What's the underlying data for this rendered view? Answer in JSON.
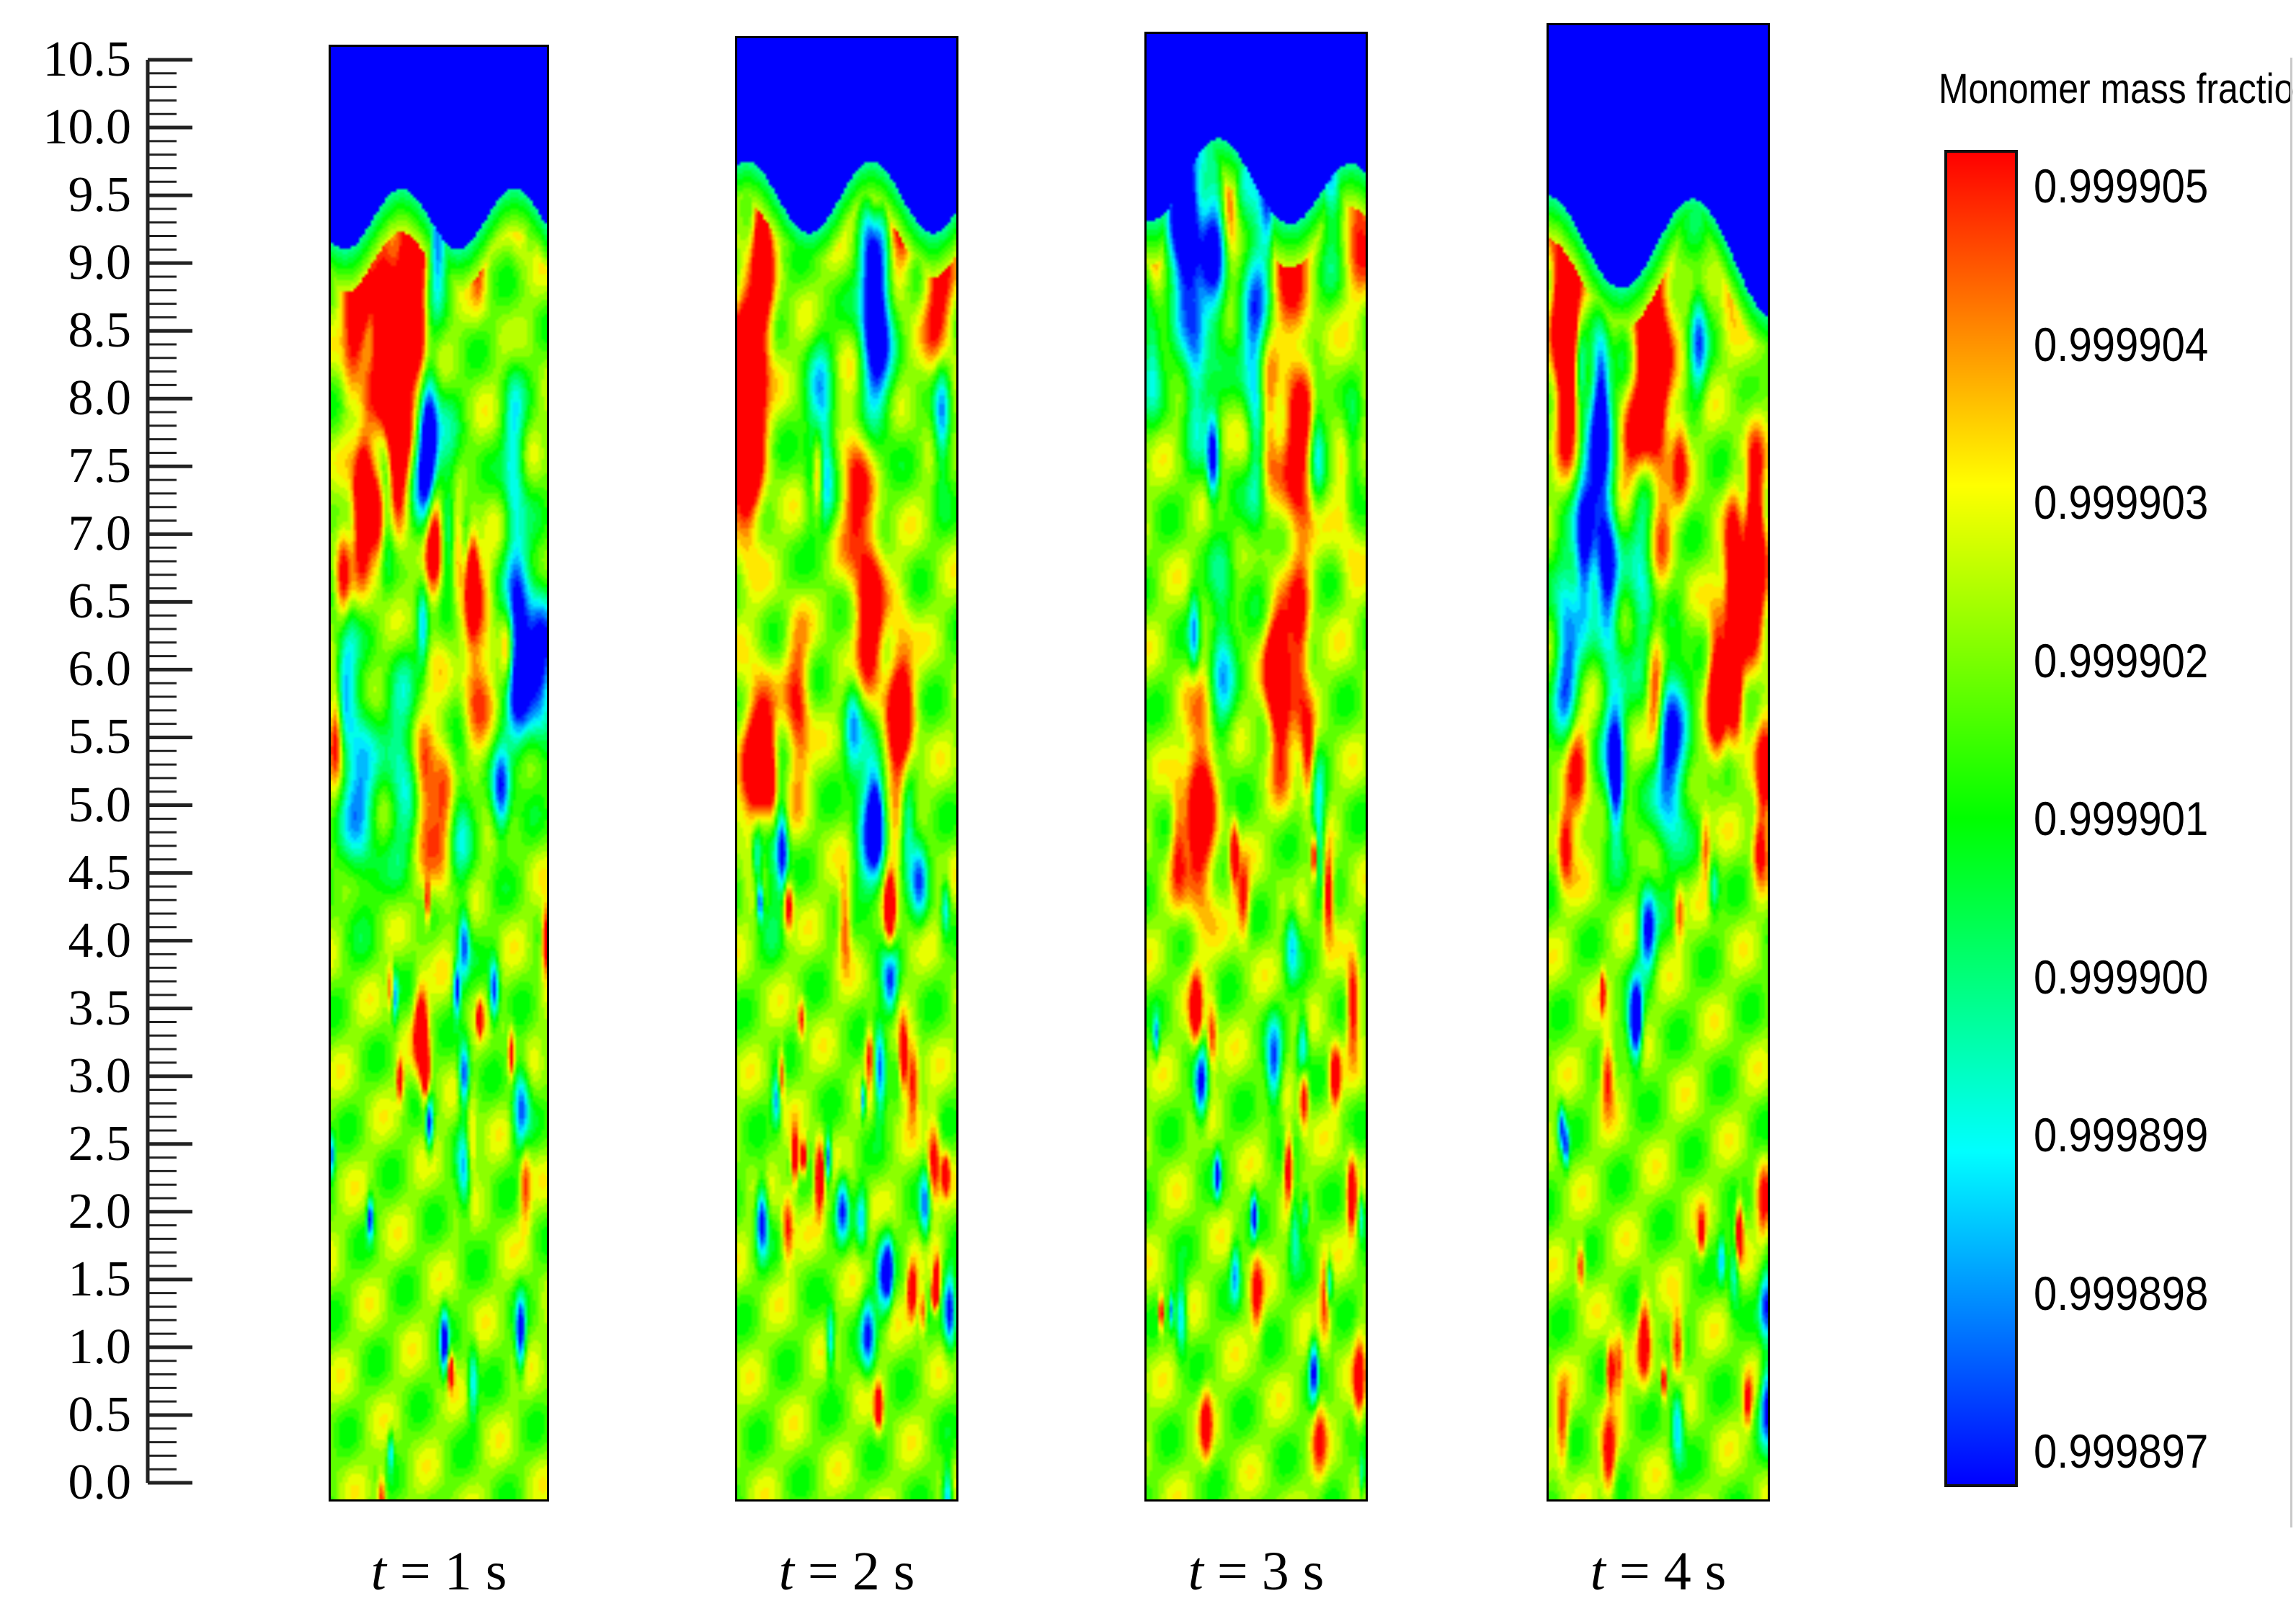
{
  "axis": {
    "ticks": [
      "10.5",
      "10.0",
      "9.5",
      "9.0",
      "8.5",
      "8.0",
      "7.5",
      "7.0",
      "6.5",
      "6.0",
      "5.5",
      "5.0",
      "4.5",
      "4.0",
      "3.5",
      "3.0",
      "2.5",
      "2.0",
      "1.5",
      "1.0",
      "0.5",
      "0.0"
    ],
    "min": 0.0,
    "max": 10.5
  },
  "panels": [
    {
      "t_symbol": "t",
      "t_rest": " = 1 s",
      "fill_level": 9.4
    },
    {
      "t_symbol": "t",
      "t_rest": " = 2 s",
      "fill_level": 9.5
    },
    {
      "t_symbol": "t",
      "t_rest": " = 3 s",
      "fill_level": 9.6
    },
    {
      "t_symbol": "t",
      "t_rest": " = 4 s",
      "fill_level": 9.1
    }
  ],
  "colorbar": {
    "title": "Monomer mass fraction",
    "labels": [
      "0.999905",
      "0.999904",
      "0.999903",
      "0.999902",
      "0.999901",
      "0.999900",
      "0.999899",
      "0.999898",
      "0.999897"
    ],
    "colors": [
      "#ff0000",
      "#ff8000",
      "#ffff00",
      "#80ff00",
      "#00ff00",
      "#00ff80",
      "#00ffff",
      "#0080ff",
      "#0000ff"
    ]
  }
}
